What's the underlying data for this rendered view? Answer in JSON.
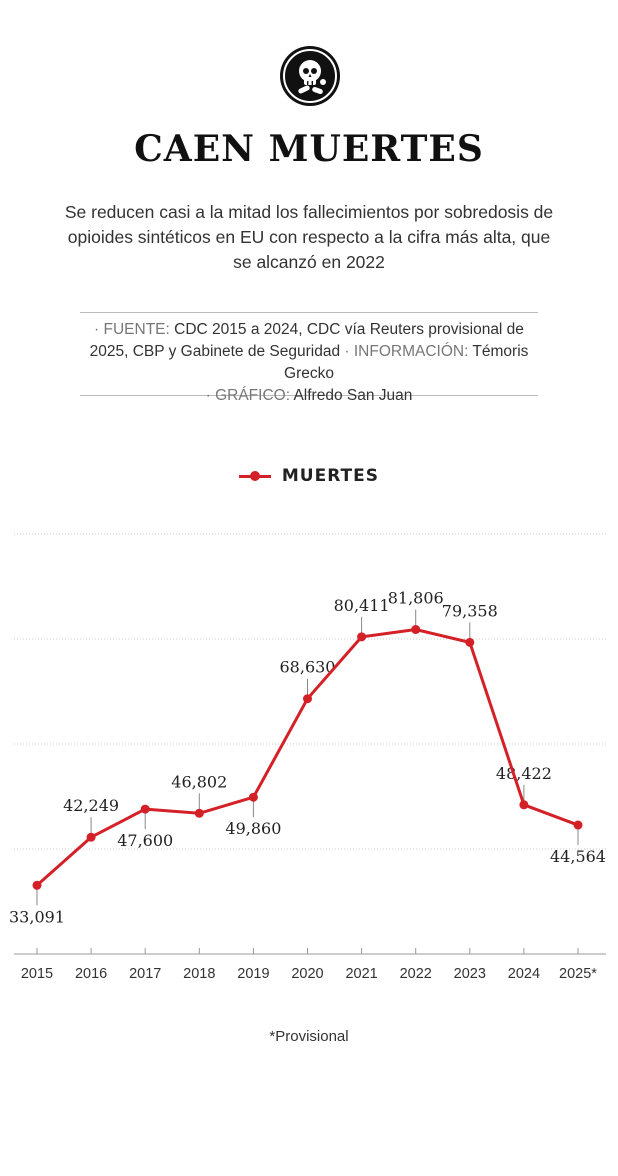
{
  "header": {
    "icon": "skull-pills-icon",
    "title": "CAEN MUERTES",
    "subtitle": "Se reducen casi a la mitad los fallecimientos por sobredosis de opioides sintéticos en EU con respecto a la cifra más alta, que se alcanzó en 2022"
  },
  "credits": {
    "source_label": "· FUENTE:",
    "source_text": "CDC 2015 a 2024, CDC vía Reuters provisional de 2025, CBP y Gabinete de Seguridad",
    "info_label": "· INFORMACIÓN:",
    "info_text": "Témoris Grecko",
    "graphic_label": "· GRÁFICO:",
    "graphic_text": "Alfredo San Juan"
  },
  "legend": {
    "label": "MUERTES"
  },
  "footnote": "*Provisional",
  "colors": {
    "line": "#d42027",
    "grid": "#cccccc",
    "text": "#222222"
  },
  "chart_data": {
    "type": "line",
    "categories": [
      "2015",
      "2016",
      "2017",
      "2018",
      "2019",
      "2020",
      "2021",
      "2022",
      "2023",
      "2024",
      "2025*"
    ],
    "series": [
      {
        "name": "MUERTES",
        "values": [
          33091,
          42249,
          47600,
          46802,
          49860,
          68630,
          80411,
          81806,
          79358,
          48422,
          44564
        ],
        "labels": [
          "33,091",
          "42,249",
          "47,600",
          "46,802",
          "49,860",
          "68,630",
          "80,411",
          "81,806",
          "79,358",
          "48,422",
          "44,564"
        ]
      }
    ],
    "ylim": [
      20000,
      100000
    ],
    "grid": true,
    "label_position": [
      "below",
      "above",
      "below",
      "above",
      "below",
      "above",
      "above",
      "above",
      "above",
      "above",
      "below"
    ]
  }
}
